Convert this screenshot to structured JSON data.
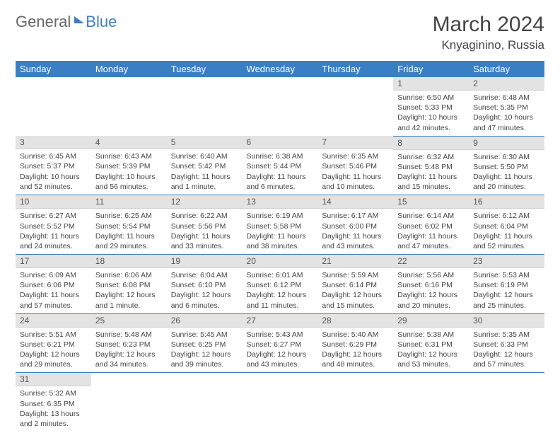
{
  "logo": {
    "text1": "General",
    "text2": "Blue"
  },
  "title": "March 2024",
  "location": "Knyaginino, Russia",
  "weekdays": [
    "Sunday",
    "Monday",
    "Tuesday",
    "Wednesday",
    "Thursday",
    "Friday",
    "Saturday"
  ],
  "colors": {
    "header_bg": "#3a7fc4",
    "header_text": "#ffffff",
    "daynum_bg": "#e3e3e3",
    "cell_border": "#3a7fc4",
    "text": "#444444"
  },
  "weeks": [
    [
      null,
      null,
      null,
      null,
      null,
      {
        "n": "1",
        "sunrise": "6:50 AM",
        "sunset": "5:33 PM",
        "daylight": "10 hours and 42 minutes."
      },
      {
        "n": "2",
        "sunrise": "6:48 AM",
        "sunset": "5:35 PM",
        "daylight": "10 hours and 47 minutes."
      }
    ],
    [
      {
        "n": "3",
        "sunrise": "6:45 AM",
        "sunset": "5:37 PM",
        "daylight": "10 hours and 52 minutes."
      },
      {
        "n": "4",
        "sunrise": "6:43 AM",
        "sunset": "5:39 PM",
        "daylight": "10 hours and 56 minutes."
      },
      {
        "n": "5",
        "sunrise": "6:40 AM",
        "sunset": "5:42 PM",
        "daylight": "11 hours and 1 minute."
      },
      {
        "n": "6",
        "sunrise": "6:38 AM",
        "sunset": "5:44 PM",
        "daylight": "11 hours and 6 minutes."
      },
      {
        "n": "7",
        "sunrise": "6:35 AM",
        "sunset": "5:46 PM",
        "daylight": "11 hours and 10 minutes."
      },
      {
        "n": "8",
        "sunrise": "6:32 AM",
        "sunset": "5:48 PM",
        "daylight": "11 hours and 15 minutes."
      },
      {
        "n": "9",
        "sunrise": "6:30 AM",
        "sunset": "5:50 PM",
        "daylight": "11 hours and 20 minutes."
      }
    ],
    [
      {
        "n": "10",
        "sunrise": "6:27 AM",
        "sunset": "5:52 PM",
        "daylight": "11 hours and 24 minutes."
      },
      {
        "n": "11",
        "sunrise": "6:25 AM",
        "sunset": "5:54 PM",
        "daylight": "11 hours and 29 minutes."
      },
      {
        "n": "12",
        "sunrise": "6:22 AM",
        "sunset": "5:56 PM",
        "daylight": "11 hours and 33 minutes."
      },
      {
        "n": "13",
        "sunrise": "6:19 AM",
        "sunset": "5:58 PM",
        "daylight": "11 hours and 38 minutes."
      },
      {
        "n": "14",
        "sunrise": "6:17 AM",
        "sunset": "6:00 PM",
        "daylight": "11 hours and 43 minutes."
      },
      {
        "n": "15",
        "sunrise": "6:14 AM",
        "sunset": "6:02 PM",
        "daylight": "11 hours and 47 minutes."
      },
      {
        "n": "16",
        "sunrise": "6:12 AM",
        "sunset": "6:04 PM",
        "daylight": "11 hours and 52 minutes."
      }
    ],
    [
      {
        "n": "17",
        "sunrise": "6:09 AM",
        "sunset": "6:06 PM",
        "daylight": "11 hours and 57 minutes."
      },
      {
        "n": "18",
        "sunrise": "6:06 AM",
        "sunset": "6:08 PM",
        "daylight": "12 hours and 1 minute."
      },
      {
        "n": "19",
        "sunrise": "6:04 AM",
        "sunset": "6:10 PM",
        "daylight": "12 hours and 6 minutes."
      },
      {
        "n": "20",
        "sunrise": "6:01 AM",
        "sunset": "6:12 PM",
        "daylight": "12 hours and 11 minutes."
      },
      {
        "n": "21",
        "sunrise": "5:59 AM",
        "sunset": "6:14 PM",
        "daylight": "12 hours and 15 minutes."
      },
      {
        "n": "22",
        "sunrise": "5:56 AM",
        "sunset": "6:16 PM",
        "daylight": "12 hours and 20 minutes."
      },
      {
        "n": "23",
        "sunrise": "5:53 AM",
        "sunset": "6:19 PM",
        "daylight": "12 hours and 25 minutes."
      }
    ],
    [
      {
        "n": "24",
        "sunrise": "5:51 AM",
        "sunset": "6:21 PM",
        "daylight": "12 hours and 29 minutes."
      },
      {
        "n": "25",
        "sunrise": "5:48 AM",
        "sunset": "6:23 PM",
        "daylight": "12 hours and 34 minutes."
      },
      {
        "n": "26",
        "sunrise": "5:45 AM",
        "sunset": "6:25 PM",
        "daylight": "12 hours and 39 minutes."
      },
      {
        "n": "27",
        "sunrise": "5:43 AM",
        "sunset": "6:27 PM",
        "daylight": "12 hours and 43 minutes."
      },
      {
        "n": "28",
        "sunrise": "5:40 AM",
        "sunset": "6:29 PM",
        "daylight": "12 hours and 48 minutes."
      },
      {
        "n": "29",
        "sunrise": "5:38 AM",
        "sunset": "6:31 PM",
        "daylight": "12 hours and 53 minutes."
      },
      {
        "n": "30",
        "sunrise": "5:35 AM",
        "sunset": "6:33 PM",
        "daylight": "12 hours and 57 minutes."
      }
    ],
    [
      {
        "n": "31",
        "sunrise": "5:32 AM",
        "sunset": "6:35 PM",
        "daylight": "13 hours and 2 minutes."
      },
      null,
      null,
      null,
      null,
      null,
      null
    ]
  ],
  "labels": {
    "sunrise": "Sunrise: ",
    "sunset": "Sunset: ",
    "daylight": "Daylight: "
  }
}
